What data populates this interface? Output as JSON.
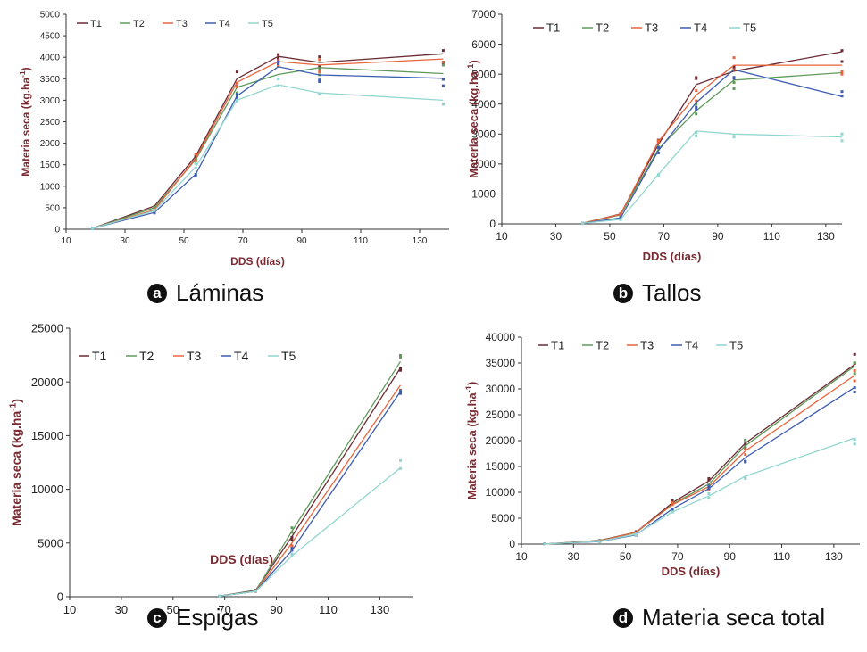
{
  "colors": {
    "T1": "#6b2b35",
    "T2": "#5f9a5a",
    "T3": "#e8643c",
    "T4": "#3f5db1",
    "T5": "#92d6cf",
    "axis_label": "#7a2a32"
  },
  "captions": [
    {
      "letter": "a",
      "text": "Láminas"
    },
    {
      "letter": "b",
      "text": "Tallos"
    },
    {
      "letter": "c",
      "text": "Espigas"
    },
    {
      "letter": "d",
      "text": "Materia seca total"
    }
  ],
  "chart_data": [
    {
      "id": "a",
      "type": "line",
      "ylabel_main": "Materia seca  (kg.ha",
      "ylabel_sup": "-1",
      "ylabel_end": ")",
      "xlabel": "DDS (días)",
      "xlim": [
        10,
        140
      ],
      "ylim": [
        0,
        5000
      ],
      "xticks": [
        10,
        30,
        50,
        70,
        90,
        110,
        130
      ],
      "yticks": [
        0,
        500,
        1000,
        1500,
        2000,
        2500,
        3000,
        3500,
        4000,
        4500,
        5000
      ],
      "legend": "top-left",
      "x": [
        19,
        40,
        54,
        68,
        82,
        96,
        138
      ],
      "series": [
        {
          "name": "T1",
          "values": [
            20,
            540,
            1700,
            3500,
            4020,
            3880,
            4080
          ]
        },
        {
          "name": "T2",
          "values": [
            20,
            500,
            1620,
            3300,
            3600,
            3760,
            3620
          ]
        },
        {
          "name": "T3",
          "values": [
            20,
            450,
            1650,
            3420,
            3900,
            3820,
            3960
          ]
        },
        {
          "name": "T4",
          "values": [
            20,
            390,
            1280,
            3100,
            3780,
            3590,
            3510
          ]
        },
        {
          "name": "T5",
          "values": [
            20,
            430,
            1450,
            3000,
            3360,
            3170,
            3000
          ]
        }
      ]
    },
    {
      "id": "b",
      "type": "line",
      "ylabel_main": "Materia seca (kg.ha",
      "ylabel_sup": "-1",
      "ylabel_end": ")",
      "xlabel": "DDS (días)",
      "xlim": [
        10,
        136
      ],
      "ylim": [
        0,
        7000
      ],
      "xticks": [
        10,
        30,
        50,
        70,
        90,
        110,
        130
      ],
      "yticks": [
        0,
        1000,
        2000,
        3000,
        4000,
        5000,
        6000,
        7000
      ],
      "legend": "top-right",
      "x": [
        40,
        54,
        68,
        82,
        96,
        136
      ],
      "series": [
        {
          "name": "T1",
          "values": [
            20,
            330,
            2650,
            4650,
            5100,
            5750
          ]
        },
        {
          "name": "T2",
          "values": [
            20,
            300,
            2500,
            3780,
            4800,
            5050
          ]
        },
        {
          "name": "T3",
          "values": [
            20,
            320,
            2750,
            4300,
            5300,
            5300
          ]
        },
        {
          "name": "T4",
          "values": [
            20,
            200,
            2450,
            4050,
            5150,
            4250
          ]
        },
        {
          "name": "T5",
          "values": [
            20,
            150,
            1650,
            3100,
            3000,
            2900
          ]
        }
      ]
    },
    {
      "id": "c",
      "type": "line",
      "ylabel_main": "Materia seca (kg.ha",
      "ylabel_sup": "-1",
      "ylabel_end": ")",
      "xlabel": "DDS (días)",
      "xlim": [
        10,
        143
      ],
      "ylim": [
        0,
        25000
      ],
      "xticks": [
        10,
        30,
        50,
        70,
        90,
        110,
        130
      ],
      "yticks": [
        0,
        5000,
        10000,
        15000,
        20000,
        25000
      ],
      "legend": "top-left",
      "x": [
        68,
        82,
        96,
        138
      ],
      "series": [
        {
          "name": "T1",
          "values": [
            60,
            600,
            5600,
            21300
          ]
        },
        {
          "name": "T2",
          "values": [
            60,
            550,
            6100,
            21900
          ]
        },
        {
          "name": "T3",
          "values": [
            60,
            500,
            5000,
            19700
          ]
        },
        {
          "name": "T4",
          "values": [
            60,
            500,
            4300,
            19100
          ]
        },
        {
          "name": "T5",
          "values": [
            60,
            500,
            3800,
            12000
          ]
        }
      ]
    },
    {
      "id": "d",
      "type": "line",
      "ylabel_main": "Materia seca (kg.ha",
      "ylabel_sup": "-1",
      "ylabel_end": ")",
      "xlabel": "DDS (días)",
      "xlim": [
        10,
        140
      ],
      "ylim": [
        0,
        40000
      ],
      "xticks": [
        10,
        30,
        50,
        70,
        90,
        110,
        130
      ],
      "yticks": [
        0,
        5000,
        10000,
        15000,
        20000,
        25000,
        30000,
        35000,
        40000
      ],
      "legend": "top-left",
      "x": [
        19,
        40,
        54,
        68,
        82,
        96,
        138
      ],
      "series": [
        {
          "name": "T1",
          "values": [
            20,
            700,
            2300,
            8000,
            12200,
            19500,
            34700
          ]
        },
        {
          "name": "T2",
          "values": [
            20,
            650,
            2200,
            7700,
            11600,
            19000,
            34400
          ]
        },
        {
          "name": "T3",
          "values": [
            20,
            600,
            2300,
            7600,
            11100,
            18000,
            32600
          ]
        },
        {
          "name": "T4",
          "values": [
            20,
            500,
            1800,
            6800,
            10700,
            16700,
            30300
          ]
        },
        {
          "name": "T5",
          "values": [
            20,
            550,
            1900,
            6200,
            9300,
            13100,
            20500
          ]
        }
      ]
    }
  ]
}
